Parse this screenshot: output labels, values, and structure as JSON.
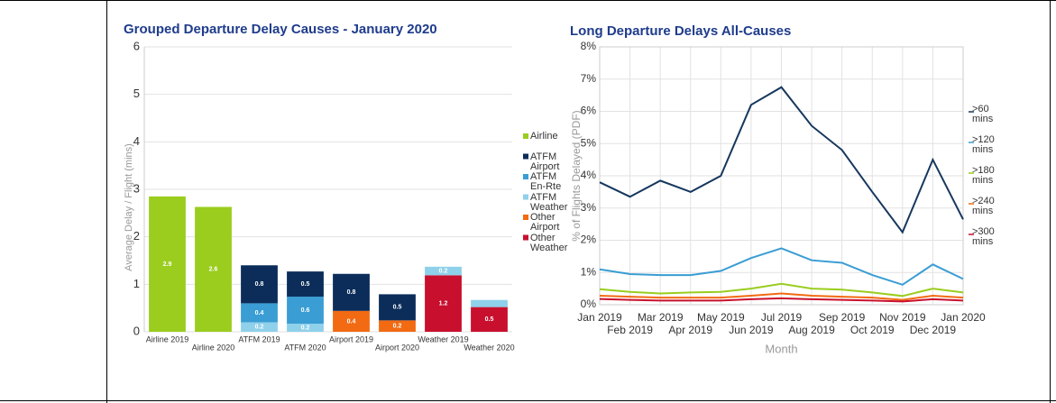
{
  "chart_data": [
    {
      "type": "stacked_bar",
      "title": "Grouped Departure Delay Causes - January 2020",
      "y_label": "Average Delay / Flight (mins)",
      "categories": [
        "Airline 2019",
        "Airline 2020",
        "ATFM 2019",
        "ATFM 2020",
        "Airport 2019",
        "Airport 2020",
        "Weather 2019",
        "Weather 2020"
      ],
      "series": [
        {
          "name": "Airline",
          "color": "#9acd1e",
          "values": [
            2.85,
            2.63,
            null,
            null,
            null,
            null,
            null,
            null
          ],
          "value_labels": [
            "2.9",
            "2.6",
            null,
            null,
            null,
            null,
            null,
            null
          ]
        },
        {
          "name": "ATFM Airport",
          "color": "#0c2d5a",
          "values": [
            null,
            null,
            0.8,
            0.53,
            0.78,
            0.55,
            null,
            null
          ],
          "value_labels": [
            null,
            null,
            "0.8",
            "0.5",
            "0.8",
            "0.5",
            null,
            null
          ]
        },
        {
          "name": "ATFM En-Rte",
          "color": "#3a9dd4",
          "values": [
            null,
            null,
            0.4,
            0.57,
            null,
            null,
            null,
            null
          ],
          "value_labels": [
            null,
            null,
            "0.4",
            "0.6",
            null,
            null,
            null,
            null
          ]
        },
        {
          "name": "ATFM Weather",
          "color": "#8fd0ea",
          "values": [
            null,
            null,
            0.2,
            0.17,
            null,
            null,
            0.18,
            0.15
          ],
          "value_labels": [
            null,
            null,
            "0.2",
            "0.2",
            null,
            null,
            "0.2",
            null
          ]
        },
        {
          "name": "Other Airport",
          "color": "#f26a12",
          "values": [
            null,
            null,
            null,
            null,
            0.44,
            0.24,
            null,
            null
          ],
          "value_labels": [
            null,
            null,
            null,
            null,
            "0.4",
            "0.2",
            null,
            null
          ]
        },
        {
          "name": "Other Weather",
          "color": "#c8102e",
          "values": [
            null,
            null,
            null,
            null,
            null,
            null,
            1.19,
            0.52
          ],
          "value_labels": [
            null,
            null,
            null,
            null,
            null,
            null,
            "1.2",
            "0.5"
          ]
        }
      ],
      "ylim": [
        0,
        6
      ],
      "yticks": [
        0,
        1,
        2,
        3,
        4,
        5,
        6
      ],
      "grid": true,
      "legend": "right"
    },
    {
      "type": "line",
      "title": "Long Departure Delays All-Causes",
      "y_label": "% of Flights Delayed (PDF)",
      "x_label": "Month",
      "categories": [
        "Jan 2019",
        "Feb 2019",
        "Mar 2019",
        "Apr 2019",
        "May 2019",
        "Jun 2019",
        "Jul 2019",
        "Aug 2019",
        "Sep 2019",
        "Oct 2019",
        "Nov 2019",
        "Dec 2019",
        "Jan 2020"
      ],
      "series": [
        {
          "name": ">60 mins",
          "color": "#16375e",
          "values": [
            3.8,
            3.35,
            3.85,
            3.5,
            4.0,
            6.2,
            6.75,
            5.55,
            4.8,
            3.5,
            2.25,
            4.5,
            2.65
          ]
        },
        {
          "name": ">120 mins",
          "color": "#3a9dd4",
          "values": [
            1.1,
            0.95,
            0.92,
            0.92,
            1.05,
            1.45,
            1.75,
            1.38,
            1.3,
            0.92,
            0.62,
            1.25,
            0.8
          ]
        },
        {
          "name": ">180 mins",
          "color": "#9acd1e",
          "values": [
            0.48,
            0.4,
            0.35,
            0.38,
            0.4,
            0.5,
            0.65,
            0.5,
            0.47,
            0.38,
            0.27,
            0.5,
            0.38
          ]
        },
        {
          "name": ">240 mins",
          "color": "#f26a12",
          "values": [
            0.28,
            0.25,
            0.22,
            0.22,
            0.22,
            0.28,
            0.35,
            0.28,
            0.25,
            0.22,
            0.15,
            0.28,
            0.22
          ]
        },
        {
          "name": ">300 mins",
          "color": "#c8102e",
          "values": [
            0.18,
            0.15,
            0.13,
            0.13,
            0.13,
            0.17,
            0.2,
            0.17,
            0.15,
            0.13,
            0.1,
            0.17,
            0.13
          ]
        }
      ],
      "ylim": [
        0,
        8
      ],
      "yticks": [
        {
          "value": 0,
          "label": "0%"
        },
        {
          "value": 1,
          "label": "1%"
        },
        {
          "value": 2,
          "label": "2%"
        },
        {
          "value": 3,
          "label": "3%"
        },
        {
          "value": 4,
          "label": "4%"
        },
        {
          "value": 5,
          "label": "5%"
        },
        {
          "value": 6,
          "label": "6%"
        },
        {
          "value": 7,
          "label": "7%"
        },
        {
          "value": 8,
          "label": "8%"
        }
      ],
      "grid": true,
      "legend": "right"
    }
  ]
}
